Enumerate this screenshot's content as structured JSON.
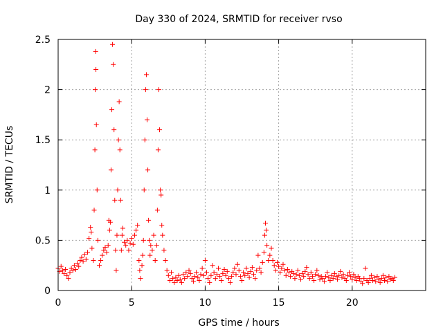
{
  "chart_data": {
    "type": "scatter",
    "title": "Day 330 of 2024, SRMTID for receiver rvso",
    "xlabel": "GPS time / hours",
    "ylabel": "SRMTID / TECUs",
    "xlim": [
      0,
      25
    ],
    "ylim": [
      0,
      2.5
    ],
    "xticks": [
      0,
      5,
      10,
      15,
      20
    ],
    "xtick_labels": [
      "0",
      "5",
      "10",
      "15",
      "20"
    ],
    "yticks": [
      0,
      0.5,
      1,
      1.5,
      2,
      2.5
    ],
    "ytick_labels": [
      "0",
      "0.5",
      "1",
      "1.5",
      "2",
      "2.5"
    ],
    "grid": true,
    "marker": "+",
    "series": [
      {
        "name": "SRMTID",
        "color": "#ff0000",
        "points": [
          [
            0.0,
            0.22
          ],
          [
            0.1,
            0.19
          ],
          [
            0.2,
            0.24
          ],
          [
            0.3,
            0.2
          ],
          [
            0.4,
            0.17
          ],
          [
            0.5,
            0.21
          ],
          [
            0.6,
            0.15
          ],
          [
            0.7,
            0.12
          ],
          [
            0.8,
            0.18
          ],
          [
            0.9,
            0.22
          ],
          [
            1.0,
            0.2
          ],
          [
            1.1,
            0.25
          ],
          [
            1.2,
            0.21
          ],
          [
            1.3,
            0.27
          ],
          [
            1.4,
            0.24
          ],
          [
            1.5,
            0.3
          ],
          [
            1.6,
            0.33
          ],
          [
            1.7,
            0.29
          ],
          [
            1.8,
            0.36
          ],
          [
            1.9,
            0.31
          ],
          [
            2.0,
            0.38
          ],
          [
            2.1,
            0.52
          ],
          [
            2.2,
            0.63
          ],
          [
            2.25,
            0.58
          ],
          [
            2.3,
            0.42
          ],
          [
            2.4,
            0.3
          ],
          [
            2.45,
            0.8
          ],
          [
            2.5,
            1.4
          ],
          [
            2.52,
            2.0
          ],
          [
            2.55,
            2.38
          ],
          [
            2.57,
            2.2
          ],
          [
            2.6,
            1.65
          ],
          [
            2.65,
            1.0
          ],
          [
            2.7,
            0.5
          ],
          [
            2.8,
            0.25
          ],
          [
            2.9,
            0.3
          ],
          [
            3.0,
            0.35
          ],
          [
            3.1,
            0.4
          ],
          [
            3.2,
            0.43
          ],
          [
            3.3,
            0.38
          ],
          [
            3.4,
            0.45
          ],
          [
            3.45,
            0.7
          ],
          [
            3.5,
            0.6
          ],
          [
            3.55,
            0.68
          ],
          [
            3.6,
            1.2
          ],
          [
            3.65,
            1.8
          ],
          [
            3.7,
            2.45
          ],
          [
            3.75,
            2.25
          ],
          [
            3.8,
            1.6
          ],
          [
            3.85,
            0.9
          ],
          [
            3.9,
            0.4
          ],
          [
            3.95,
            0.2
          ],
          [
            4.0,
            0.55
          ],
          [
            4.05,
            1.0
          ],
          [
            4.1,
            1.5
          ],
          [
            4.15,
            1.88
          ],
          [
            4.2,
            1.4
          ],
          [
            4.25,
            0.9
          ],
          [
            4.3,
            0.4
          ],
          [
            4.35,
            0.55
          ],
          [
            4.4,
            0.62
          ],
          [
            4.5,
            0.48
          ],
          [
            4.6,
            0.45
          ],
          [
            4.7,
            0.5
          ],
          [
            4.8,
            0.4
          ],
          [
            4.9,
            0.47
          ],
          [
            5.0,
            0.52
          ],
          [
            5.1,
            0.46
          ],
          [
            5.2,
            0.55
          ],
          [
            5.3,
            0.6
          ],
          [
            5.4,
            0.65
          ],
          [
            5.5,
            0.3
          ],
          [
            5.55,
            0.2
          ],
          [
            5.6,
            0.12
          ],
          [
            5.7,
            0.25
          ],
          [
            5.75,
            0.35
          ],
          [
            5.8,
            0.5
          ],
          [
            5.85,
            1.0
          ],
          [
            5.9,
            1.5
          ],
          [
            5.95,
            2.0
          ],
          [
            6.0,
            2.15
          ],
          [
            6.05,
            1.7
          ],
          [
            6.1,
            1.2
          ],
          [
            6.15,
            0.7
          ],
          [
            6.2,
            0.5
          ],
          [
            6.25,
            0.35
          ],
          [
            6.3,
            0.45
          ],
          [
            6.4,
            0.4
          ],
          [
            6.5,
            0.55
          ],
          [
            6.6,
            0.3
          ],
          [
            6.7,
            0.45
          ],
          [
            6.75,
            0.8
          ],
          [
            6.8,
            1.4
          ],
          [
            6.85,
            2.0
          ],
          [
            6.9,
            1.6
          ],
          [
            6.95,
            1.0
          ],
          [
            7.0,
            0.95
          ],
          [
            7.05,
            0.65
          ],
          [
            7.1,
            0.55
          ],
          [
            7.2,
            0.4
          ],
          [
            7.3,
            0.3
          ],
          [
            7.4,
            0.2
          ],
          [
            7.5,
            0.15
          ],
          [
            7.6,
            0.1
          ],
          [
            7.7,
            0.18
          ],
          [
            7.8,
            0.12
          ],
          [
            7.9,
            0.08
          ],
          [
            8.0,
            0.13
          ],
          [
            8.1,
            0.1
          ],
          [
            8.2,
            0.15
          ],
          [
            8.3,
            0.11
          ],
          [
            8.4,
            0.08
          ],
          [
            8.5,
            0.16
          ],
          [
            8.6,
            0.12
          ],
          [
            8.7,
            0.18
          ],
          [
            8.8,
            0.14
          ],
          [
            8.9,
            0.2
          ],
          [
            9.0,
            0.17
          ],
          [
            9.1,
            0.12
          ],
          [
            9.2,
            0.09
          ],
          [
            9.3,
            0.14
          ],
          [
            9.4,
            0.18
          ],
          [
            9.5,
            0.13
          ],
          [
            9.6,
            0.1
          ],
          [
            9.7,
            0.16
          ],
          [
            9.8,
            0.22
          ],
          [
            9.9,
            0.15
          ],
          [
            10.0,
            0.3
          ],
          [
            10.1,
            0.18
          ],
          [
            10.2,
            0.12
          ],
          [
            10.3,
            0.08
          ],
          [
            10.4,
            0.15
          ],
          [
            10.5,
            0.25
          ],
          [
            10.6,
            0.18
          ],
          [
            10.7,
            0.12
          ],
          [
            10.8,
            0.16
          ],
          [
            10.9,
            0.22
          ],
          [
            11.0,
            0.14
          ],
          [
            11.1,
            0.1
          ],
          [
            11.2,
            0.17
          ],
          [
            11.3,
            0.21
          ],
          [
            11.4,
            0.15
          ],
          [
            11.5,
            0.19
          ],
          [
            11.6,
            0.12
          ],
          [
            11.7,
            0.08
          ],
          [
            11.8,
            0.14
          ],
          [
            11.9,
            0.18
          ],
          [
            12.0,
            0.22
          ],
          [
            12.1,
            0.16
          ],
          [
            12.2,
            0.26
          ],
          [
            12.3,
            0.2
          ],
          [
            12.4,
            0.14
          ],
          [
            12.5,
            0.1
          ],
          [
            12.6,
            0.18
          ],
          [
            12.7,
            0.15
          ],
          [
            12.8,
            0.22
          ],
          [
            12.9,
            0.17
          ],
          [
            13.0,
            0.13
          ],
          [
            13.1,
            0.19
          ],
          [
            13.2,
            0.23
          ],
          [
            13.3,
            0.16
          ],
          [
            13.4,
            0.12
          ],
          [
            13.5,
            0.2
          ],
          [
            13.6,
            0.35
          ],
          [
            13.7,
            0.22
          ],
          [
            13.8,
            0.18
          ],
          [
            13.9,
            0.28
          ],
          [
            14.0,
            0.38
          ],
          [
            14.05,
            0.55
          ],
          [
            14.1,
            0.67
          ],
          [
            14.15,
            0.6
          ],
          [
            14.2,
            0.45
          ],
          [
            14.3,
            0.3
          ],
          [
            14.4,
            0.35
          ],
          [
            14.5,
            0.42
          ],
          [
            14.6,
            0.3
          ],
          [
            14.7,
            0.25
          ],
          [
            14.8,
            0.2
          ],
          [
            14.9,
            0.28
          ],
          [
            15.0,
            0.24
          ],
          [
            15.1,
            0.18
          ],
          [
            15.2,
            0.22
          ],
          [
            15.3,
            0.26
          ],
          [
            15.4,
            0.2
          ],
          [
            15.5,
            0.15
          ],
          [
            15.6,
            0.21
          ],
          [
            15.7,
            0.18
          ],
          [
            15.8,
            0.14
          ],
          [
            15.9,
            0.19
          ],
          [
            16.0,
            0.17
          ],
          [
            16.1,
            0.12
          ],
          [
            16.2,
            0.16
          ],
          [
            16.3,
            0.2
          ],
          [
            16.4,
            0.15
          ],
          [
            16.5,
            0.11
          ],
          [
            16.6,
            0.17
          ],
          [
            16.7,
            0.14
          ],
          [
            16.8,
            0.19
          ],
          [
            16.9,
            0.23
          ],
          [
            17.0,
            0.16
          ],
          [
            17.1,
            0.12
          ],
          [
            17.2,
            0.18
          ],
          [
            17.3,
            0.14
          ],
          [
            17.4,
            0.1
          ],
          [
            17.5,
            0.16
          ],
          [
            17.6,
            0.2
          ],
          [
            17.7,
            0.15
          ],
          [
            17.8,
            0.11
          ],
          [
            17.9,
            0.14
          ],
          [
            18.0,
            0.12
          ],
          [
            18.1,
            0.09
          ],
          [
            18.2,
            0.14
          ],
          [
            18.3,
            0.18
          ],
          [
            18.4,
            0.13
          ],
          [
            18.5,
            0.1
          ],
          [
            18.6,
            0.15
          ],
          [
            18.7,
            0.12
          ],
          [
            18.8,
            0.17
          ],
          [
            18.9,
            0.14
          ],
          [
            19.0,
            0.11
          ],
          [
            19.1,
            0.15
          ],
          [
            19.2,
            0.19
          ],
          [
            19.3,
            0.13
          ],
          [
            19.4,
            0.16
          ],
          [
            19.5,
            0.12
          ],
          [
            19.6,
            0.1
          ],
          [
            19.7,
            0.15
          ],
          [
            19.8,
            0.18
          ],
          [
            19.9,
            0.14
          ],
          [
            20.0,
            0.11
          ],
          [
            20.1,
            0.16
          ],
          [
            20.2,
            0.13
          ],
          [
            20.3,
            0.1
          ],
          [
            20.4,
            0.14
          ],
          [
            20.5,
            0.12
          ],
          [
            20.6,
            0.09
          ],
          [
            20.7,
            0.07
          ],
          [
            20.8,
            0.12
          ],
          [
            20.9,
            0.22
          ],
          [
            21.0,
            0.1
          ],
          [
            21.1,
            0.08
          ],
          [
            21.2,
            0.12
          ],
          [
            21.3,
            0.15
          ],
          [
            21.4,
            0.1
          ],
          [
            21.5,
            0.13
          ],
          [
            21.6,
            0.09
          ],
          [
            21.7,
            0.14
          ],
          [
            21.8,
            0.11
          ],
          [
            21.9,
            0.08
          ],
          [
            22.0,
            0.12
          ],
          [
            22.1,
            0.15
          ],
          [
            22.2,
            0.1
          ],
          [
            22.3,
            0.13
          ],
          [
            22.4,
            0.09
          ],
          [
            22.5,
            0.14
          ],
          [
            22.6,
            0.11
          ],
          [
            22.7,
            0.12
          ],
          [
            22.8,
            0.1
          ],
          [
            22.9,
            0.13
          ]
        ]
      }
    ]
  }
}
